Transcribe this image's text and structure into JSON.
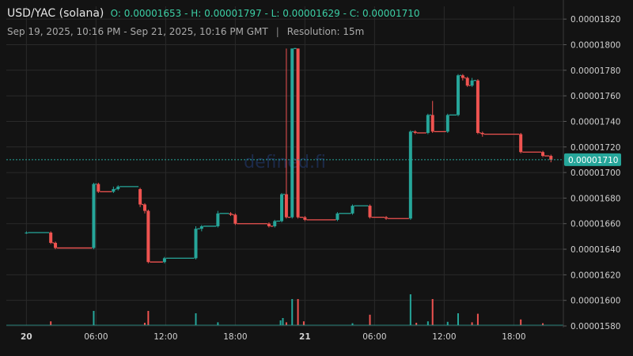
{
  "header": {
    "pair": "USD/YAC (solana)",
    "o_label": "O:",
    "o_value": "0.00001653",
    "h_label": "H:",
    "h_value": "0.00001797",
    "l_label": "L:",
    "l_value": "0.00001629",
    "c_label": "C:",
    "c_value": "0.00001710",
    "range": "Sep 19, 2025, 10:16 PM - Sep 21, 2025, 10:16 PM GMT",
    "separator": "|",
    "resolution": "Resolution: 15m"
  },
  "watermark": "defined.fi",
  "colors": {
    "up": "#26a69a",
    "down": "#ef5350",
    "background": "#131313",
    "grid": "#2a2a2a",
    "price_line": "#26a69a",
    "price_tag": "#26a69a"
  },
  "chart_data": {
    "type": "candlestick",
    "ylim": [
      1.58e-05,
      1.83e-05
    ],
    "yticks": [
      "0.00001580",
      "0.00001600",
      "0.00001620",
      "0.00001640",
      "0.00001660",
      "0.00001680",
      "0.00001700",
      "0.00001720",
      "0.00001740",
      "0.00001760",
      "0.00001780",
      "0.00001800",
      "0.00001820"
    ],
    "xlim": [
      22.27,
      70.27
    ],
    "xticks": [
      {
        "t": 24,
        "label": "20",
        "bold": true
      },
      {
        "t": 30,
        "label": "06:00",
        "bold": false
      },
      {
        "t": 36,
        "label": "12:00",
        "bold": false
      },
      {
        "t": 42,
        "label": "18:00",
        "bold": false
      },
      {
        "t": 48,
        "label": "21",
        "bold": true
      },
      {
        "t": 54,
        "label": "06:00",
        "bold": false
      },
      {
        "t": 60,
        "label": "12:00",
        "bold": false
      },
      {
        "t": 66,
        "label": "18:00",
        "bold": false
      }
    ],
    "last_price": 1.71e-05,
    "last_price_label": "0.00001710",
    "candles": [
      {
        "t": 24.0,
        "o": 1.653e-05,
        "h": 1.654e-05,
        "l": 1.652e-05,
        "c": 1.653e-05
      },
      {
        "t": 26.1,
        "o": 1.653e-05,
        "h": 1.654e-05,
        "l": 1.644e-05,
        "c": 1.645e-05
      },
      {
        "t": 26.5,
        "o": 1.645e-05,
        "h": 1.646e-05,
        "l": 1.64e-05,
        "c": 1.641e-05
      },
      {
        "t": 29.8,
        "o": 1.641e-05,
        "h": 1.692e-05,
        "l": 1.64e-05,
        "c": 1.691e-05
      },
      {
        "t": 30.2,
        "o": 1.691e-05,
        "h": 1.692e-05,
        "l": 1.684e-05,
        "c": 1.685e-05
      },
      {
        "t": 31.5,
        "o": 1.685e-05,
        "h": 1.689e-05,
        "l": 1.684e-05,
        "c": 1.687e-05
      },
      {
        "t": 31.9,
        "o": 1.687e-05,
        "h": 1.69e-05,
        "l": 1.686e-05,
        "c": 1.689e-05
      },
      {
        "t": 33.8,
        "o": 1.687e-05,
        "h": 1.688e-05,
        "l": 1.673e-05,
        "c": 1.675e-05
      },
      {
        "t": 34.2,
        "o": 1.675e-05,
        "h": 1.676e-05,
        "l": 1.668e-05,
        "c": 1.67e-05
      },
      {
        "t": 34.5,
        "o": 1.67e-05,
        "h": 1.671e-05,
        "l": 1.629e-05,
        "c": 1.63e-05
      },
      {
        "t": 35.9,
        "o": 1.63e-05,
        "h": 1.634e-05,
        "l": 1.629e-05,
        "c": 1.633e-05
      },
      {
        "t": 38.6,
        "o": 1.633e-05,
        "h": 1.658e-05,
        "l": 1.632e-05,
        "c": 1.656e-05
      },
      {
        "t": 39.1,
        "o": 1.656e-05,
        "h": 1.659e-05,
        "l": 1.654e-05,
        "c": 1.658e-05
      },
      {
        "t": 40.5,
        "o": 1.658e-05,
        "h": 1.67e-05,
        "l": 1.657e-05,
        "c": 1.668e-05
      },
      {
        "t": 41.6,
        "o": 1.668e-05,
        "h": 1.669e-05,
        "l": 1.666e-05,
        "c": 1.667e-05
      },
      {
        "t": 42.0,
        "o": 1.667e-05,
        "h": 1.668e-05,
        "l": 1.659e-05,
        "c": 1.66e-05
      },
      {
        "t": 44.9,
        "o": 1.66e-05,
        "h": 1.661e-05,
        "l": 1.657e-05,
        "c": 1.658e-05
      },
      {
        "t": 45.4,
        "o": 1.658e-05,
        "h": 1.663e-05,
        "l": 1.657e-05,
        "c": 1.662e-05
      },
      {
        "t": 46.0,
        "o": 1.662e-05,
        "h": 1.684e-05,
        "l": 1.661e-05,
        "c": 1.683e-05
      },
      {
        "t": 46.4,
        "o": 1.683e-05,
        "h": 1.797e-05,
        "l": 1.664e-05,
        "c": 1.665e-05
      },
      {
        "t": 46.9,
        "o": 1.665e-05,
        "h": 1.797e-05,
        "l": 1.664e-05,
        "c": 1.797e-05
      },
      {
        "t": 47.4,
        "o": 1.797e-05,
        "h": 1.797e-05,
        "l": 1.664e-05,
        "c": 1.665e-05
      },
      {
        "t": 48.0,
        "o": 1.665e-05,
        "h": 1.666e-05,
        "l": 1.662e-05,
        "c": 1.663e-05
      },
      {
        "t": 50.8,
        "o": 1.663e-05,
        "h": 1.669e-05,
        "l": 1.662e-05,
        "c": 1.668e-05
      },
      {
        "t": 52.1,
        "o": 1.668e-05,
        "h": 1.675e-05,
        "l": 1.667e-05,
        "c": 1.674e-05
      },
      {
        "t": 53.6,
        "o": 1.674e-05,
        "h": 1.675e-05,
        "l": 1.664e-05,
        "c": 1.665e-05
      },
      {
        "t": 55.0,
        "o": 1.665e-05,
        "h": 1.666e-05,
        "l": 1.663e-05,
        "c": 1.664e-05
      },
      {
        "t": 57.1,
        "o": 1.664e-05,
        "h": 1.733e-05,
        "l": 1.663e-05,
        "c": 1.732e-05
      },
      {
        "t": 57.5,
        "o": 1.732e-05,
        "h": 1.733e-05,
        "l": 1.73e-05,
        "c": 1.731e-05
      },
      {
        "t": 58.6,
        "o": 1.731e-05,
        "h": 1.746e-05,
        "l": 1.73e-05,
        "c": 1.745e-05
      },
      {
        "t": 59.0,
        "o": 1.745e-05,
        "h": 1.756e-05,
        "l": 1.731e-05,
        "c": 1.732e-05
      },
      {
        "t": 60.3,
        "o": 1.732e-05,
        "h": 1.746e-05,
        "l": 1.731e-05,
        "c": 1.745e-05
      },
      {
        "t": 61.2,
        "o": 1.745e-05,
        "h": 1.777e-05,
        "l": 1.744e-05,
        "c": 1.776e-05
      },
      {
        "t": 61.6,
        "o": 1.776e-05,
        "h": 1.777e-05,
        "l": 1.772e-05,
        "c": 1.774e-05
      },
      {
        "t": 62.0,
        "o": 1.774e-05,
        "h": 1.775e-05,
        "l": 1.767e-05,
        "c": 1.768e-05
      },
      {
        "t": 62.4,
        "o": 1.768e-05,
        "h": 1.774e-05,
        "l": 1.767e-05,
        "c": 1.772e-05
      },
      {
        "t": 62.9,
        "o": 1.772e-05,
        "h": 1.773e-05,
        "l": 1.73e-05,
        "c": 1.731e-05
      },
      {
        "t": 63.3,
        "o": 1.731e-05,
        "h": 1.732e-05,
        "l": 1.728e-05,
        "c": 1.73e-05
      },
      {
        "t": 66.6,
        "o": 1.73e-05,
        "h": 1.731e-05,
        "l": 1.715e-05,
        "c": 1.716e-05
      },
      {
        "t": 68.5,
        "o": 1.716e-05,
        "h": 1.717e-05,
        "l": 1.712e-05,
        "c": 1.713e-05
      },
      {
        "t": 69.2,
        "o": 1.713e-05,
        "h": 1.714e-05,
        "l": 1.708e-05,
        "c": 1.71e-05
      }
    ],
    "volume": [
      {
        "t": 26.1,
        "v": 0.08,
        "dir": "down"
      },
      {
        "t": 29.8,
        "v": 0.3,
        "dir": "up"
      },
      {
        "t": 34.2,
        "v": 0.05,
        "dir": "down"
      },
      {
        "t": 34.5,
        "v": 0.3,
        "dir": "down"
      },
      {
        "t": 38.6,
        "v": 0.25,
        "dir": "up"
      },
      {
        "t": 40.5,
        "v": 0.06,
        "dir": "up"
      },
      {
        "t": 45.9,
        "v": 0.1,
        "dir": "up"
      },
      {
        "t": 46.1,
        "v": 0.15,
        "dir": "up"
      },
      {
        "t": 46.4,
        "v": 0.06,
        "dir": "down"
      },
      {
        "t": 46.9,
        "v": 0.55,
        "dir": "up"
      },
      {
        "t": 47.4,
        "v": 0.55,
        "dir": "down"
      },
      {
        "t": 47.9,
        "v": 0.08,
        "dir": "down"
      },
      {
        "t": 52.1,
        "v": 0.04,
        "dir": "up"
      },
      {
        "t": 53.6,
        "v": 0.22,
        "dir": "down"
      },
      {
        "t": 57.1,
        "v": 0.65,
        "dir": "up"
      },
      {
        "t": 57.6,
        "v": 0.05,
        "dir": "down"
      },
      {
        "t": 58.6,
        "v": 0.08,
        "dir": "up"
      },
      {
        "t": 59.0,
        "v": 0.55,
        "dir": "down"
      },
      {
        "t": 60.3,
        "v": 0.07,
        "dir": "up"
      },
      {
        "t": 61.2,
        "v": 0.25,
        "dir": "up"
      },
      {
        "t": 62.4,
        "v": 0.06,
        "dir": "down"
      },
      {
        "t": 62.9,
        "v": 0.24,
        "dir": "down"
      },
      {
        "t": 66.6,
        "v": 0.12,
        "dir": "down"
      },
      {
        "t": 68.5,
        "v": 0.04,
        "dir": "down"
      }
    ]
  }
}
